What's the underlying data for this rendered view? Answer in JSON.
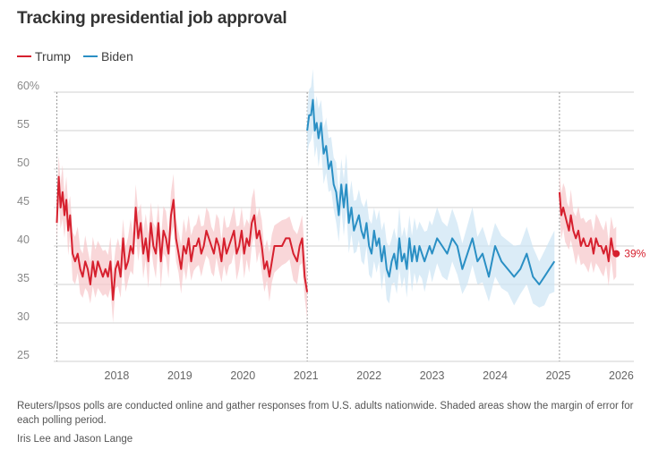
{
  "title": "Tracking presidential job approval",
  "legend": [
    {
      "label": "Trump",
      "color": "#d6202e"
    },
    {
      "label": "Biden",
      "color": "#2a8fc4"
    }
  ],
  "note": "Reuters/Ipsos polls are conducted online and gather responses from U.S. adults nationwide. Shaded areas show the margin of error for each polling period.",
  "byline": "Iris Lee and Jason Lange",
  "chart_data": {
    "type": "line",
    "title": "Tracking presidential job approval",
    "ylim": [
      25,
      60
    ],
    "xlim": [
      2017.0,
      2026.2
    ],
    "y_ticks": [
      {
        "value": 60,
        "label": "60%"
      },
      {
        "value": 55,
        "label": "55"
      },
      {
        "value": 50,
        "label": "50"
      },
      {
        "value": 45,
        "label": "45"
      },
      {
        "value": 40,
        "label": "40"
      },
      {
        "value": 35,
        "label": "35"
      },
      {
        "value": 30,
        "label": "30"
      },
      {
        "value": 25,
        "label": "25"
      }
    ],
    "x_ticks": [
      "2018",
      "2019",
      "2020",
      "2021",
      "2022",
      "2023",
      "2024",
      "2025",
      "2026"
    ],
    "grid": true,
    "legend_position": "top-left",
    "error_band": "margin of error",
    "end_label": "39%",
    "series": [
      {
        "name": "Trump",
        "color": "#d6202e",
        "band_color": "#f7c9cc",
        "x": [
          2017.05,
          2017.08,
          2017.11,
          2017.14,
          2017.17,
          2017.2,
          2017.23,
          2017.26,
          2017.3,
          2017.34,
          2017.38,
          2017.42,
          2017.46,
          2017.5,
          2017.54,
          2017.58,
          2017.62,
          2017.66,
          2017.7,
          2017.74,
          2017.78,
          2017.82,
          2017.86,
          2017.9,
          2017.94,
          2017.98,
          2018.02,
          2018.06,
          2018.1,
          2018.14,
          2018.18,
          2018.22,
          2018.26,
          2018.3,
          2018.34,
          2018.38,
          2018.42,
          2018.46,
          2018.5,
          2018.54,
          2018.58,
          2018.62,
          2018.66,
          2018.7,
          2018.74,
          2018.78,
          2018.82,
          2018.86,
          2018.9,
          2018.94,
          2018.98,
          2019.02,
          2019.06,
          2019.1,
          2019.14,
          2019.18,
          2019.22,
          2019.26,
          2019.3,
          2019.34,
          2019.38,
          2019.42,
          2019.46,
          2019.5,
          2019.54,
          2019.58,
          2019.62,
          2019.66,
          2019.7,
          2019.74,
          2019.78,
          2019.82,
          2019.86,
          2019.9,
          2019.94,
          2019.98,
          2020.02,
          2020.06,
          2020.1,
          2020.14,
          2020.18,
          2020.22,
          2020.26,
          2020.3,
          2020.34,
          2020.38,
          2020.42,
          2020.46,
          2020.5,
          2020.56,
          2020.62,
          2020.68,
          2020.74,
          2020.8,
          2020.86,
          2020.9,
          2020.94,
          2020.98,
          2021.02
        ],
        "y": [
          43,
          49,
          45,
          47,
          44,
          46,
          42,
          44,
          39,
          38,
          39,
          37,
          36,
          38,
          37,
          35,
          38,
          36,
          38,
          37,
          36,
          37,
          36,
          38,
          33,
          37,
          38,
          36,
          41,
          37,
          38,
          40,
          39,
          45,
          41,
          43,
          39,
          41,
          38,
          43,
          40,
          39,
          43,
          38,
          42,
          41,
          39,
          44,
          46,
          41,
          39,
          37,
          40,
          39,
          41,
          38,
          40,
          40,
          41,
          39,
          40,
          42,
          41,
          40,
          39,
          41,
          40,
          38,
          41,
          39,
          40,
          41,
          42,
          39,
          40,
          42,
          39,
          41,
          40,
          43,
          44,
          41,
          42,
          40,
          37,
          38,
          36,
          38,
          40,
          40,
          40,
          41,
          41,
          39,
          38,
          40,
          41,
          36,
          34
        ],
        "band_half_width": 2.5
      },
      {
        "name": "Biden",
        "color": "#2a8fc4",
        "band_color": "#cfe6f4",
        "x": [
          2021.02,
          2021.05,
          2021.08,
          2021.11,
          2021.14,
          2021.17,
          2021.2,
          2021.24,
          2021.28,
          2021.32,
          2021.36,
          2021.4,
          2021.44,
          2021.48,
          2021.52,
          2021.56,
          2021.6,
          2021.64,
          2021.68,
          2021.72,
          2021.76,
          2021.8,
          2021.84,
          2021.88,
          2021.92,
          2021.96,
          2022.0,
          2022.04,
          2022.08,
          2022.12,
          2022.16,
          2022.2,
          2022.24,
          2022.28,
          2022.32,
          2022.36,
          2022.4,
          2022.44,
          2022.48,
          2022.52,
          2022.56,
          2022.6,
          2022.64,
          2022.68,
          2022.72,
          2022.76,
          2022.8,
          2022.84,
          2022.88,
          2022.92,
          2022.96,
          2023.0,
          2023.08,
          2023.16,
          2023.24,
          2023.32,
          2023.4,
          2023.48,
          2023.56,
          2023.64,
          2023.72,
          2023.8,
          2023.9,
          2024.0,
          2024.1,
          2024.2,
          2024.3,
          2024.4,
          2024.5,
          2024.6,
          2024.7,
          2024.78,
          2024.86,
          2024.94
        ],
        "y": [
          55,
          57,
          57,
          59,
          55,
          56,
          54,
          56,
          52,
          53,
          50,
          51,
          48,
          47,
          44,
          48,
          45,
          48,
          43,
          45,
          42,
          43,
          44,
          42,
          41,
          43,
          40,
          39,
          42,
          40,
          41,
          38,
          40,
          37,
          36,
          38,
          39,
          37,
          41,
          38,
          39,
          37,
          41,
          38,
          40,
          38,
          40,
          39,
          38,
          39,
          40,
          39,
          41,
          40,
          39,
          41,
          40,
          37,
          39,
          41,
          38,
          39,
          36,
          40,
          38,
          37,
          36,
          37,
          39,
          36,
          35,
          36,
          37,
          38
        ],
        "band_half_width": 3.0
      },
      {
        "name": "Trump",
        "color": "#d6202e",
        "band_color": "#f7c9cc",
        "x": [
          2025.02,
          2025.05,
          2025.08,
          2025.11,
          2025.14,
          2025.17,
          2025.2,
          2025.24,
          2025.28,
          2025.32,
          2025.36,
          2025.4,
          2025.44,
          2025.48,
          2025.52,
          2025.56,
          2025.6,
          2025.64,
          2025.68,
          2025.72,
          2025.76,
          2025.8,
          2025.84,
          2025.88,
          2025.92
        ],
        "y": [
          47,
          44,
          45,
          44,
          43,
          42,
          44,
          42,
          41,
          42,
          40,
          41,
          40,
          40,
          41,
          39,
          41,
          40,
          40,
          39,
          40,
          38,
          41,
          39,
          39
        ],
        "band_half_width": 2.5
      }
    ],
    "vertical_markers": [
      2017.05,
      2021.02,
      2025.02
    ]
  }
}
